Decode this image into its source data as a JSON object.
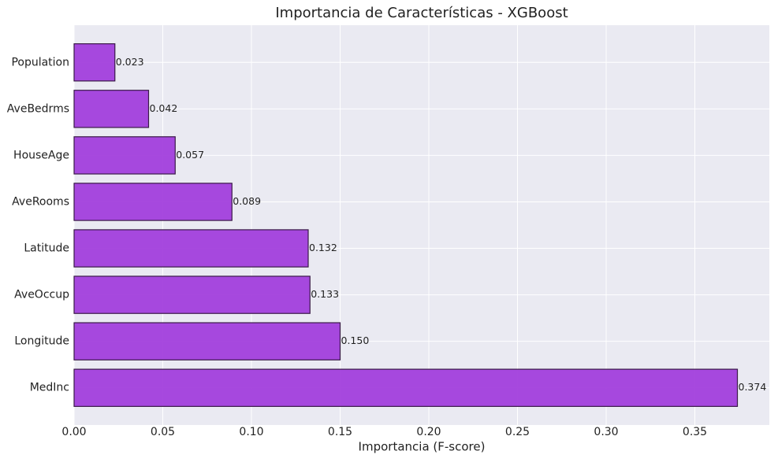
{
  "chart_data": {
    "type": "barh",
    "title": "Importancia de Características - XGBoost",
    "xlabel": "Importancia (F-score)",
    "categories": [
      "Population",
      "AveBedrms",
      "HouseAge",
      "AveRooms",
      "Latitude",
      "AveOccup",
      "Longitude",
      "MedInc"
    ],
    "values": [
      0.023,
      0.042,
      0.057,
      0.089,
      0.132,
      0.133,
      0.15,
      0.374
    ],
    "value_labels": [
      "0.023",
      "0.042",
      "0.057",
      "0.089",
      "0.132",
      "0.133",
      "0.150",
      "0.374"
    ],
    "color": "#a23fdc",
    "xlim": [
      0,
      0.392
    ],
    "xticks": [
      {
        "value": 0,
        "label": "0.00"
      },
      {
        "value": 0.05,
        "label": "0.05"
      },
      {
        "value": 0.1,
        "label": "0.10"
      },
      {
        "value": 0.15,
        "label": "0.15"
      },
      {
        "value": 0.2,
        "label": "0.20"
      },
      {
        "value": 0.25,
        "label": "0.25"
      },
      {
        "value": 0.3,
        "label": "0.30"
      },
      {
        "value": 0.35,
        "label": "0.35"
      }
    ],
    "grid": true
  }
}
